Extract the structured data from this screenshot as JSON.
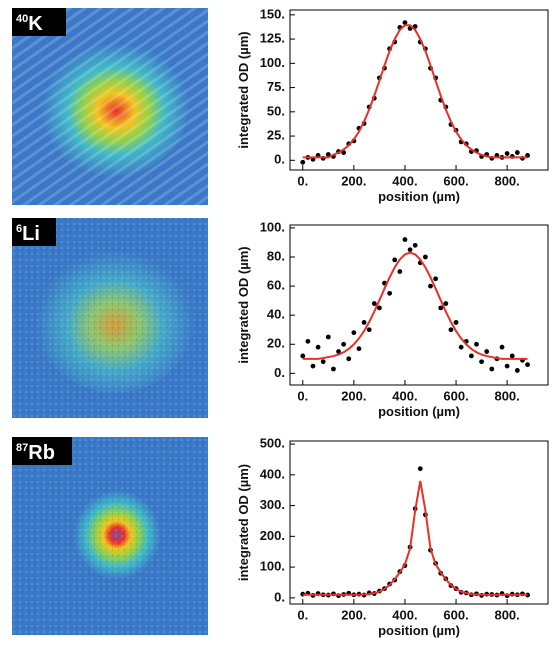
{
  "images": [
    {
      "mass": "40",
      "element": "K"
    },
    {
      "mass": "6",
      "element": "Li"
    },
    {
      "mass": "87",
      "element": "Rb"
    }
  ],
  "chart_data": [
    {
      "type": "scatter",
      "xlabel": "position (µm)",
      "ylabel": "integrated OD (µm)",
      "xlim": [
        -50,
        960
      ],
      "ylim": [
        -10,
        155
      ],
      "xticks": [
        {
          "value": 0,
          "label": "0."
        },
        {
          "value": 200,
          "label": "200."
        },
        {
          "value": 400,
          "label": "400."
        },
        {
          "value": 600,
          "label": "600."
        },
        {
          "value": 800,
          "label": "800."
        }
      ],
      "yticks": [
        {
          "value": 0,
          "label": "0."
        },
        {
          "value": 25,
          "label": "25."
        },
        {
          "value": 50,
          "label": "50."
        },
        {
          "value": 75,
          "label": "75."
        },
        {
          "value": 100,
          "label": "100."
        },
        {
          "value": 125,
          "label": "125."
        },
        {
          "value": 150,
          "label": "150."
        }
      ],
      "x": [
        0,
        20,
        40,
        60,
        80,
        100,
        120,
        140,
        160,
        180,
        200,
        220,
        240,
        260,
        280,
        300,
        320,
        340,
        360,
        380,
        400,
        420,
        440,
        460,
        480,
        500,
        520,
        540,
        560,
        580,
        600,
        620,
        640,
        660,
        680,
        700,
        720,
        740,
        760,
        780,
        800,
        820,
        840,
        860,
        880
      ],
      "series": [
        {
          "style": "points",
          "color": "#000000",
          "values": [
            -2,
            3,
            1,
            5,
            2,
            6,
            4,
            9,
            8,
            17,
            20,
            33,
            38,
            55,
            64,
            85,
            95,
            115,
            122,
            137,
            142,
            136,
            138,
            122,
            115,
            95,
            85,
            62,
            55,
            37,
            31,
            19,
            17,
            9,
            10,
            4,
            6,
            2,
            5,
            3,
            7,
            4,
            8,
            2,
            5
          ]
        },
        {
          "style": "line",
          "color": "#e8302a",
          "values": [
            3,
            3,
            3,
            3,
            3,
            3,
            5.6,
            8,
            11.1,
            15.5,
            21.5,
            29.6,
            40,
            52.4,
            66.7,
            82,
            98,
            112.7,
            125,
            134.5,
            139.3,
            139.3,
            134.5,
            125,
            112.7,
            98,
            82,
            66.7,
            52.4,
            40,
            29.6,
            21.5,
            15.5,
            11.1,
            8,
            5.6,
            4,
            3,
            3,
            3,
            3,
            3,
            3,
            3,
            3
          ]
        }
      ]
    },
    {
      "type": "scatter",
      "xlabel": "position (µm)",
      "ylabel": "integrated OD (µm)",
      "xlim": [
        -50,
        960
      ],
      "ylim": [
        -8,
        102
      ],
      "xticks": [
        {
          "value": 0,
          "label": "0."
        },
        {
          "value": 200,
          "label": "200."
        },
        {
          "value": 400,
          "label": "400."
        },
        {
          "value": 600,
          "label": "600."
        },
        {
          "value": 800,
          "label": "800."
        }
      ],
      "yticks": [
        {
          "value": 0,
          "label": "0."
        },
        {
          "value": 20,
          "label": "20."
        },
        {
          "value": 40,
          "label": "40."
        },
        {
          "value": 60,
          "label": "60."
        },
        {
          "value": 80,
          "label": "80."
        },
        {
          "value": 100,
          "label": "100."
        }
      ],
      "x": [
        0,
        20,
        40,
        60,
        80,
        100,
        120,
        140,
        160,
        180,
        200,
        220,
        240,
        260,
        280,
        300,
        320,
        340,
        360,
        380,
        400,
        420,
        440,
        460,
        480,
        500,
        520,
        540,
        560,
        580,
        600,
        620,
        640,
        660,
        680,
        700,
        720,
        740,
        760,
        780,
        800,
        820,
        840,
        860,
        880
      ],
      "series": [
        {
          "style": "points",
          "color": "#000000",
          "values": [
            12,
            22,
            5,
            18,
            8,
            25,
            3,
            15,
            20,
            10,
            28,
            17,
            35,
            30,
            48,
            45,
            62,
            55,
            78,
            70,
            92,
            85,
            88,
            76,
            80,
            60,
            65,
            45,
            48,
            30,
            35,
            18,
            22,
            12,
            20,
            8,
            15,
            3,
            10,
            18,
            5,
            12,
            2,
            9,
            6
          ]
        },
        {
          "style": "line",
          "color": "#e8302a",
          "values": [
            10,
            10,
            10,
            10,
            10.5,
            11.2,
            11.9,
            12.9,
            14.5,
            16.8,
            19.9,
            24,
            29.1,
            35.3,
            42.5,
            50.3,
            58.3,
            66,
            72.9,
            78.3,
            81.8,
            83,
            81.8,
            78.3,
            72.9,
            66,
            58.3,
            50.3,
            42.5,
            35.3,
            29.1,
            24,
            19.9,
            16.8,
            14.5,
            12.9,
            11.9,
            11.2,
            10.5,
            10,
            10,
            10,
            10,
            10,
            10
          ]
        }
      ]
    },
    {
      "type": "scatter",
      "xlabel": "position (µm)",
      "ylabel": "integrated OD (µm)",
      "xlim": [
        -50,
        960
      ],
      "ylim": [
        -20,
        510
      ],
      "xticks": [
        {
          "value": 0,
          "label": "0."
        },
        {
          "value": 200,
          "label": "200."
        },
        {
          "value": 400,
          "label": "400."
        },
        {
          "value": 600,
          "label": "600."
        },
        {
          "value": 800,
          "label": "800."
        }
      ],
      "yticks": [
        {
          "value": 0,
          "label": "0."
        },
        {
          "value": 100,
          "label": "100."
        },
        {
          "value": 200,
          "label": "200."
        },
        {
          "value": 300,
          "label": "300."
        },
        {
          "value": 400,
          "label": "400."
        },
        {
          "value": 500,
          "label": "500."
        }
      ],
      "x": [
        0,
        20,
        40,
        60,
        80,
        100,
        120,
        140,
        160,
        180,
        200,
        220,
        240,
        260,
        280,
        300,
        320,
        340,
        360,
        380,
        400,
        420,
        440,
        460,
        480,
        500,
        520,
        540,
        560,
        580,
        600,
        620,
        640,
        660,
        680,
        700,
        720,
        740,
        760,
        780,
        800,
        820,
        840,
        860,
        880
      ],
      "series": [
        {
          "style": "points",
          "color": "#000000",
          "values": [
            12,
            15,
            8,
            14,
            10,
            9,
            13,
            7,
            11,
            15,
            10,
            12,
            9,
            16,
            14,
            22,
            30,
            45,
            58,
            85,
            105,
            165,
            290,
            420,
            270,
            155,
            112,
            80,
            62,
            40,
            30,
            18,
            16,
            10,
            13,
            8,
            12,
            11,
            9,
            14,
            7,
            12,
            10,
            13,
            9
          ]
        },
        {
          "style": "line",
          "color": "#e8302a",
          "values": [
            10,
            10,
            10,
            10,
            10,
            10,
            10,
            10,
            10,
            10,
            10,
            10,
            11,
            12.3,
            15.2,
            20.2,
            28.9,
            42.2,
            60.4,
            82.8,
            109.5,
            160,
            284,
            380,
            284,
            160,
            109.5,
            82.8,
            60.4,
            42.2,
            28.9,
            20.2,
            15.2,
            12.3,
            11,
            10,
            10,
            10,
            10,
            10,
            10,
            10,
            10,
            10,
            10
          ]
        }
      ]
    }
  ]
}
